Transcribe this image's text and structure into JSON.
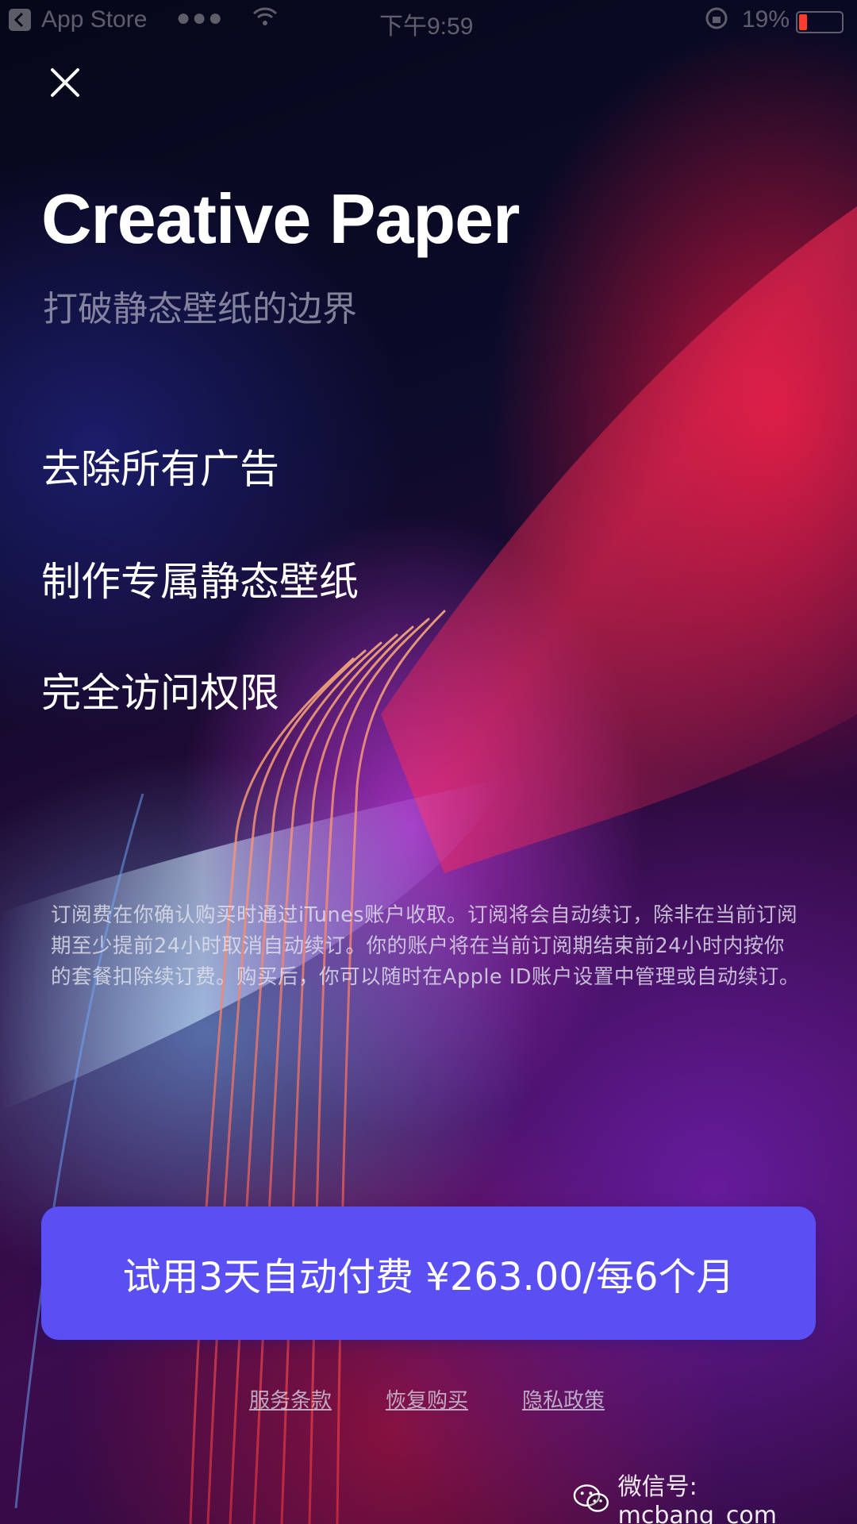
{
  "status_bar": {
    "carrier": "App Store",
    "signal": "●●●",
    "time": "下午9:59",
    "battery_text": "19%",
    "battery_level": 0.19,
    "battery_color": "#ff3b30"
  },
  "header": {
    "close_icon": "close-icon"
  },
  "hero": {
    "title": "Creative Paper",
    "subtitle": "打破静态壁纸的边界"
  },
  "features": [
    "去除所有广告",
    "制作专属静态壁纸",
    "完全访问权限"
  ],
  "disclaimer": "订阅费在你确认购买时通过iTunes账户收取。订阅将会自动续订，除非在当前订阅期至少提前24小时取消自动续订。你的账户将在当前订阅期结束前24小时内按你的套餐扣除续订费。购买后，你可以随时在Apple ID账户设置中管理或自动续订。",
  "cta": {
    "label": "试用3天自动付费 ¥263.00/每6个月",
    "color": "#5a4ff3"
  },
  "links": {
    "terms": "服务条款",
    "restore": "恢复购买",
    "privacy": "隐私政策"
  },
  "watermark": {
    "icon": "wechat-icon",
    "text": "微信号: mcbang_com"
  }
}
